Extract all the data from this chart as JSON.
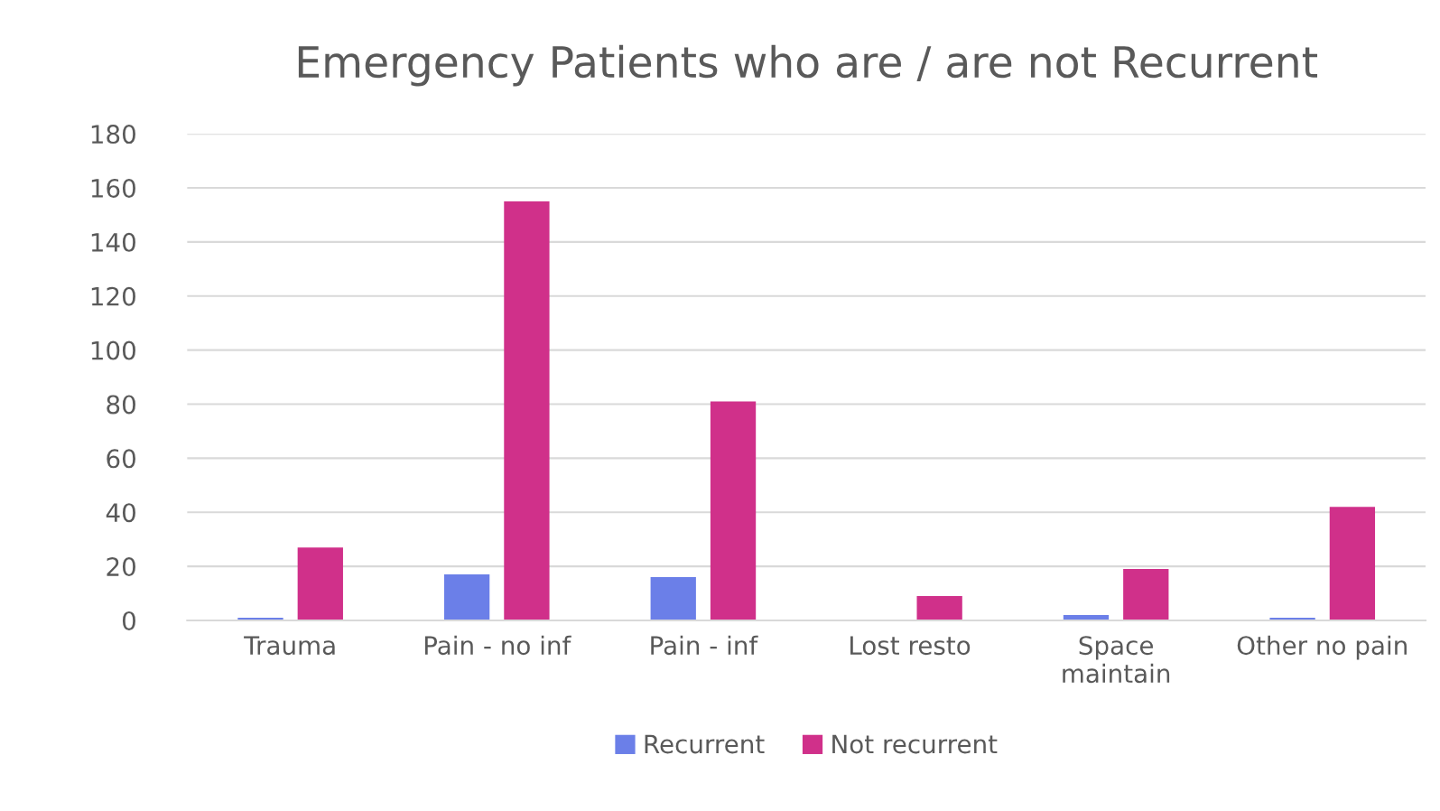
{
  "chart_data": {
    "type": "bar",
    "title": "Emergency Patients who are / are not Recurrent",
    "categories": [
      "Trauma",
      "Pain - no inf",
      "Pain - inf",
      "Lost resto",
      "Space\nmaintain",
      "Other no pain"
    ],
    "series": [
      {
        "name": "Recurrent",
        "color": "#6b7fe8",
        "values": [
          1,
          17,
          16,
          0,
          2,
          1
        ]
      },
      {
        "name": "Not recurrent",
        "color": "#d0308a",
        "values": [
          27,
          155,
          81,
          9,
          19,
          42
        ]
      }
    ],
    "ylim": [
      0,
      180
    ],
    "yticks": [
      0,
      20,
      40,
      60,
      80,
      100,
      120,
      140,
      160,
      180
    ],
    "grid": "y",
    "legend": "bottom"
  }
}
